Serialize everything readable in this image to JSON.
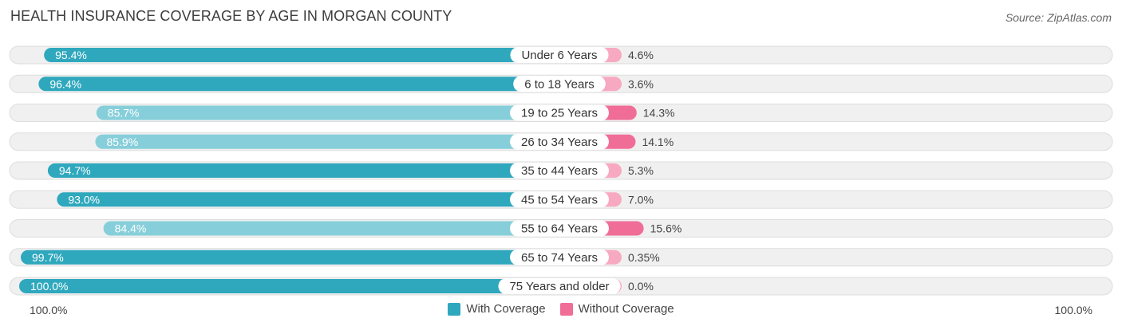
{
  "title": "HEALTH INSURANCE COVERAGE BY AGE IN MORGAN COUNTY",
  "source": "Source: ZipAtlas.com",
  "axis_left_label": "100.0%",
  "axis_right_label": "100.0%",
  "colors": {
    "with_strong": "#2fa8bd",
    "with_light": "#86cfda",
    "without_strong": "#f06d97",
    "without_light": "#f7a9c1",
    "row_bg": "#f0f0f0",
    "row_border": "#dddddd"
  },
  "legend": {
    "with_label": "With Coverage",
    "without_label": "Without Coverage"
  },
  "chart_data": {
    "type": "bar",
    "title": "HEALTH INSURANCE COVERAGE BY AGE IN MORGAN COUNTY",
    "orientation": "horizontal-diverging",
    "categories": [
      "Under 6 Years",
      "6 to 18 Years",
      "19 to 25 Years",
      "26 to 34 Years",
      "35 to 44 Years",
      "45 to 54 Years",
      "55 to 64 Years",
      "65 to 74 Years",
      "75 Years and older"
    ],
    "series": [
      {
        "name": "With Coverage",
        "values": [
          95.4,
          96.4,
          85.7,
          85.9,
          94.7,
          93.0,
          84.4,
          99.7,
          100.0
        ],
        "labels": [
          "95.4%",
          "96.4%",
          "85.7%",
          "85.9%",
          "94.7%",
          "93.0%",
          "84.4%",
          "99.7%",
          "100.0%"
        ]
      },
      {
        "name": "Without Coverage",
        "values": [
          4.6,
          3.6,
          14.3,
          14.1,
          5.3,
          7.0,
          15.6,
          0.35,
          0.0
        ],
        "labels": [
          "4.6%",
          "3.6%",
          "14.3%",
          "14.1%",
          "5.3%",
          "7.0%",
          "15.6%",
          "0.35%",
          "0.0%"
        ]
      }
    ],
    "xlim": [
      0,
      100
    ],
    "legend_position": "bottom-center"
  }
}
